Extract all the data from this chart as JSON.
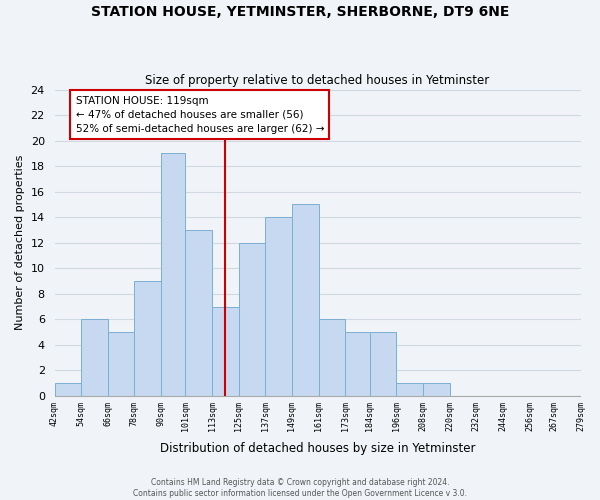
{
  "title": "STATION HOUSE, YETMINSTER, SHERBORNE, DT9 6NE",
  "subtitle": "Size of property relative to detached houses in Yetminster",
  "xlabel": "Distribution of detached houses by size in Yetminster",
  "ylabel": "Number of detached properties",
  "bin_edges": [
    42,
    54,
    66,
    78,
    90,
    101,
    113,
    125,
    137,
    149,
    161,
    173,
    184,
    196,
    208,
    220,
    232,
    244,
    256,
    267,
    279
  ],
  "bar_heights": [
    1,
    6,
    5,
    9,
    19,
    13,
    7,
    12,
    14,
    15,
    6,
    5,
    5,
    1,
    1,
    0,
    0,
    0,
    0,
    0
  ],
  "bar_color": "#c6d9f0",
  "bar_edge_color": "#7bafd4",
  "grid_color": "#d0d8e0",
  "background_color": "#f0f4f8",
  "vline_x": 119,
  "vline_color": "#cc0000",
  "annotation_title": "STATION HOUSE: 119sqm",
  "annotation_line1": "← 47% of detached houses are smaller (56)",
  "annotation_line2": "52% of semi-detached houses are larger (62) →",
  "annotation_box_color": "#ffffff",
  "annotation_box_edge": "#cc0000",
  "ylim": [
    0,
    24
  ],
  "yticks": [
    0,
    2,
    4,
    6,
    8,
    10,
    12,
    14,
    16,
    18,
    20,
    22,
    24
  ],
  "footer1": "Contains HM Land Registry data © Crown copyright and database right 2024.",
  "footer2": "Contains public sector information licensed under the Open Government Licence v 3.0."
}
